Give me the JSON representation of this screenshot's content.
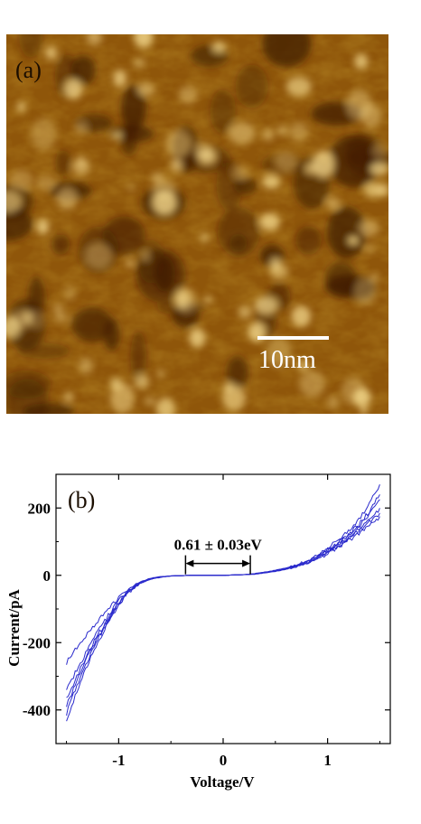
{
  "panel_a": {
    "label": "(a)",
    "scale_bar_label": "10nm"
  },
  "panel_b": {
    "label": "(b)",
    "gap_annotation": "0.61 ± 0.03eV"
  },
  "colors": {
    "curve": "#2a2acc",
    "stm_dark": "#3d1a00",
    "stm_mid": "#9a5d0c",
    "stm_bright": "#f2d68a"
  },
  "chart_data": {
    "type": "line",
    "title": "",
    "xlabel": "Voltage/V",
    "ylabel": "Current/pA",
    "xlim": [
      -1.6,
      1.6
    ],
    "ylim": [
      -500,
      300
    ],
    "xticks": [
      -1,
      0,
      1
    ],
    "xtick_labels": [
      "-1",
      "0",
      "1"
    ],
    "yticks": [
      -400,
      -200,
      0,
      200
    ],
    "ytick_labels": [
      "-400",
      "-200",
      "0",
      "200"
    ],
    "grid": false,
    "legend": "none",
    "annotation": {
      "text": "0.61 ± 0.03eV",
      "x_start": -0.36,
      "x_end": 0.26,
      "y": -5
    },
    "series": [
      {
        "x": [
          -1.5,
          -1.4,
          -1.3,
          -1.2,
          -1.1,
          -1.0,
          -0.9,
          -0.8,
          -0.7,
          -0.6,
          -0.5,
          -0.4,
          -0.3,
          -0.2,
          -0.1,
          0,
          0.1,
          0.2,
          0.3,
          0.4,
          0.5,
          0.6,
          0.7,
          0.8,
          0.9,
          1.0,
          1.1,
          1.2,
          1.3,
          1.4,
          1.5
        ],
        "values": [
          -410,
          -325,
          -255,
          -190,
          -135,
          -85,
          -48,
          -24,
          -12,
          -5,
          -2,
          -1,
          0,
          0,
          0,
          0,
          1,
          2,
          4,
          9,
          14,
          20,
          29,
          40,
          55,
          75,
          98,
          122,
          150,
          190,
          240
        ]
      },
      {
        "x": [
          -1.5,
          -1.4,
          -1.3,
          -1.2,
          -1.1,
          -1.0,
          -0.9,
          -0.8,
          -0.7,
          -0.6,
          -0.5,
          -0.4,
          -0.3,
          -0.2,
          -0.1,
          0,
          0.1,
          0.2,
          0.3,
          0.4,
          0.5,
          0.6,
          0.7,
          0.8,
          0.9,
          1.0,
          1.1,
          1.2,
          1.3,
          1.4,
          1.5
        ],
        "values": [
          -370,
          -300,
          -235,
          -178,
          -126,
          -80,
          -45,
          -23,
          -11,
          -5,
          -2,
          -1,
          0,
          0,
          0,
          0,
          1,
          2,
          4,
          8,
          13,
          19,
          27,
          38,
          52,
          70,
          90,
          112,
          136,
          165,
          200
        ]
      },
      {
        "x": [
          -1.5,
          -1.4,
          -1.3,
          -1.2,
          -1.1,
          -1.0,
          -0.9,
          -0.8,
          -0.7,
          -0.6,
          -0.5,
          -0.4,
          -0.3,
          -0.2,
          -0.1,
          0,
          0.1,
          0.2,
          0.3,
          0.4,
          0.5,
          0.6,
          0.7,
          0.8,
          0.9,
          1.0,
          1.1,
          1.2,
          1.3,
          1.4,
          1.5
        ],
        "values": [
          -340,
          -280,
          -222,
          -168,
          -120,
          -76,
          -43,
          -22,
          -10,
          -5,
          -2,
          -1,
          0,
          0,
          0,
          0,
          1,
          2,
          3,
          7,
          12,
          17,
          25,
          35,
          48,
          64,
          83,
          104,
          125,
          150,
          175
        ]
      },
      {
        "x": [
          -1.5,
          -1.4,
          -1.3,
          -1.2,
          -1.1,
          -1.0,
          -0.9,
          -0.8,
          -0.7,
          -0.6,
          -0.5,
          -0.4,
          -0.3,
          -0.2,
          -0.1,
          0,
          0.1,
          0.2,
          0.3,
          0.4,
          0.5,
          0.6,
          0.7,
          0.8,
          0.9,
          1.0,
          1.1,
          1.2,
          1.3,
          1.4,
          1.5
        ],
        "values": [
          -440,
          -345,
          -265,
          -198,
          -140,
          -88,
          -50,
          -25,
          -12,
          -6,
          -2,
          -1,
          0,
          0,
          0,
          0,
          1,
          2,
          5,
          10,
          15,
          22,
          31,
          43,
          59,
          80,
          105,
          132,
          165,
          210,
          270
        ]
      },
      {
        "x": [
          -1.5,
          -1.4,
          -1.3,
          -1.2,
          -1.1,
          -1.0,
          -0.9,
          -0.8,
          -0.7,
          -0.6,
          -0.5,
          -0.4,
          -0.3,
          -0.2,
          -0.1,
          0,
          0.1,
          0.2,
          0.3,
          0.4,
          0.5,
          0.6,
          0.7,
          0.8,
          0.9,
          1.0,
          1.1,
          1.2,
          1.3,
          1.4,
          1.5
        ],
        "values": [
          -260,
          -215,
          -172,
          -135,
          -100,
          -66,
          -38,
          -20,
          -9,
          -4,
          -2,
          -1,
          0,
          0,
          0,
          0,
          1,
          2,
          4,
          8,
          13,
          18,
          26,
          36,
          50,
          67,
          86,
          108,
          132,
          160,
          185
        ]
      },
      {
        "x": [
          -1.5,
          -1.4,
          -1.3,
          -1.2,
          -1.1,
          -1.0,
          -0.9,
          -0.8,
          -0.7,
          -0.6,
          -0.5,
          -0.4,
          -0.3,
          -0.2,
          -0.1,
          0,
          0.1,
          0.2,
          0.3,
          0.4,
          0.5,
          0.6,
          0.7,
          0.8,
          0.9,
          1.0,
          1.1,
          1.2,
          1.3,
          1.4,
          1.5
        ],
        "values": [
          -390,
          -310,
          -245,
          -184,
          -130,
          -82,
          -46,
          -23,
          -11,
          -5,
          -2,
          -1,
          0,
          0,
          0,
          0,
          1,
          2,
          4,
          9,
          14,
          20,
          28,
          39,
          54,
          72,
          94,
          118,
          145,
          180,
          225
        ]
      }
    ]
  }
}
